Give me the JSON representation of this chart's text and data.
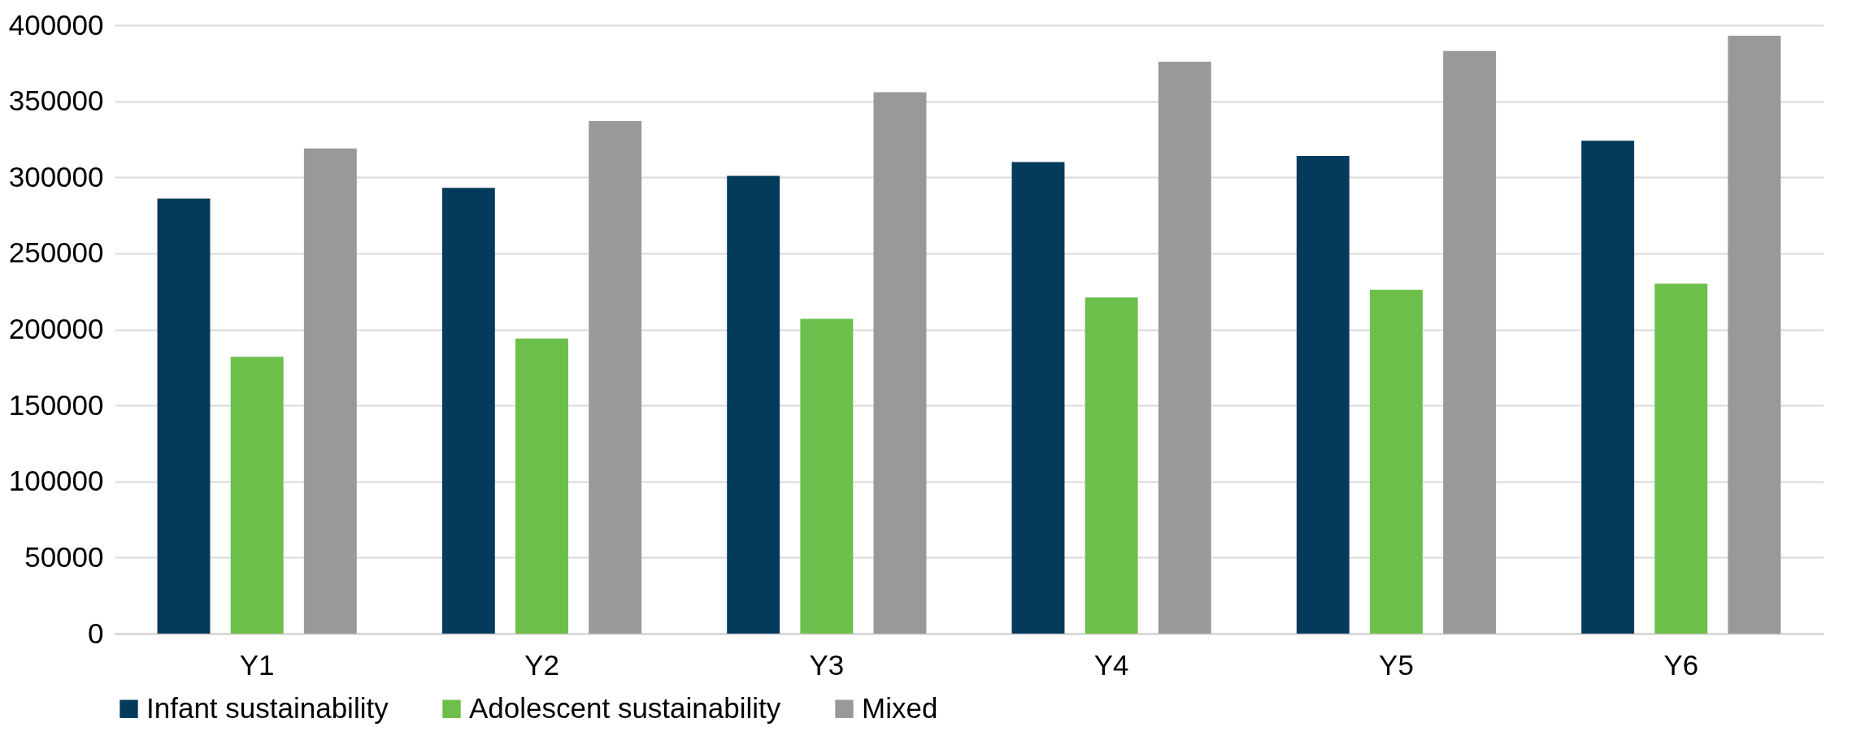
{
  "chart_data": {
    "type": "bar",
    "categories": [
      "Y1",
      "Y2",
      "Y3",
      "Y4",
      "Y5",
      "Y6"
    ],
    "series": [
      {
        "name": "Infant sustainability",
        "color": "#043a5c",
        "values": [
          286000,
          293000,
          301000,
          310000,
          314000,
          324000
        ]
      },
      {
        "name": "Adolescent sustainability",
        "color": "#6cbf4a",
        "values": [
          182000,
          194000,
          207000,
          221000,
          226000,
          230000
        ]
      },
      {
        "name": "Mixed",
        "color": "#999999",
        "values": [
          319000,
          337000,
          356000,
          376000,
          383000,
          393000
        ]
      }
    ],
    "ylim": [
      0,
      400000
    ],
    "yticks": [
      0,
      50000,
      100000,
      150000,
      200000,
      250000,
      300000,
      350000,
      400000
    ],
    "grid": "y",
    "legend": "bottom"
  }
}
